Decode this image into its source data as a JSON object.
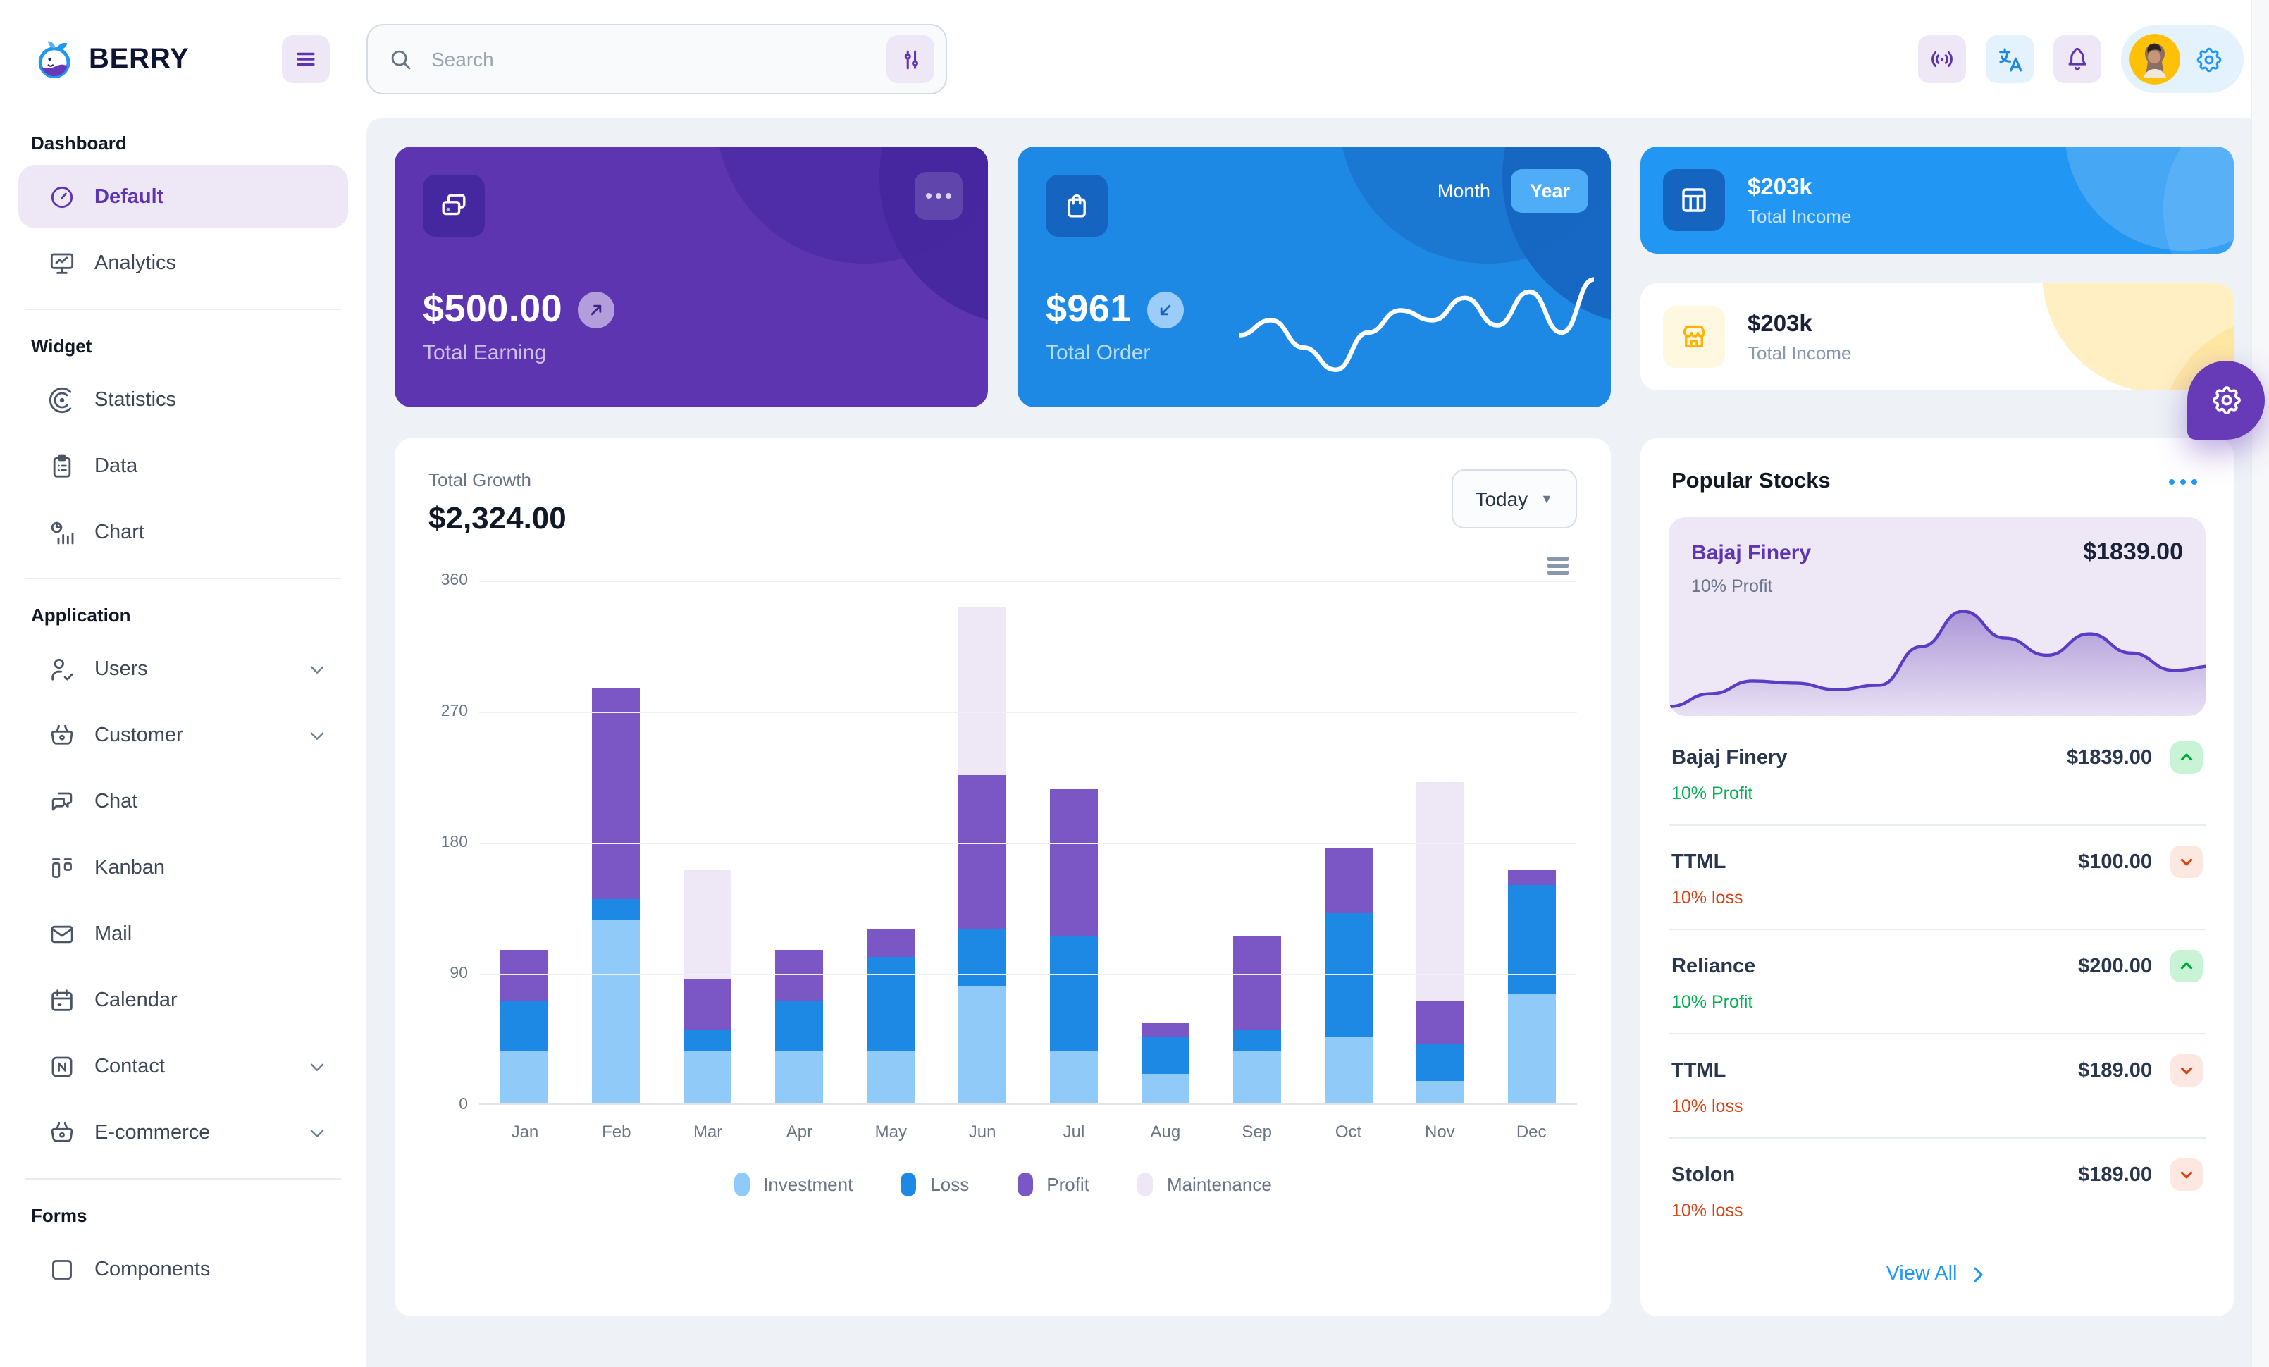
{
  "brand": {
    "name": "BERRY"
  },
  "header": {
    "search": {
      "placeholder": "Search"
    }
  },
  "sidebar": {
    "sections": [
      {
        "title": "Dashboard",
        "items": [
          {
            "label": "Default",
            "icon": "gauge",
            "active": true
          },
          {
            "label": "Analytics",
            "icon": "device-analytics"
          }
        ]
      },
      {
        "title": "Widget",
        "items": [
          {
            "label": "Statistics",
            "icon": "chart-arcs"
          },
          {
            "label": "Data",
            "icon": "clipboard-list"
          },
          {
            "label": "Chart",
            "icon": "chart-infographic"
          }
        ]
      },
      {
        "title": "Application",
        "items": [
          {
            "label": "Users",
            "icon": "user-check",
            "expandable": true
          },
          {
            "label": "Customer",
            "icon": "basket",
            "expandable": true
          },
          {
            "label": "Chat",
            "icon": "message"
          },
          {
            "label": "Kanban",
            "icon": "layout-kanban"
          },
          {
            "label": "Mail",
            "icon": "mail"
          },
          {
            "label": "Calendar",
            "icon": "calendar"
          },
          {
            "label": "Contact",
            "icon": "nfc",
            "expandable": true
          },
          {
            "label": "E-commerce",
            "icon": "basket",
            "expandable": true
          }
        ]
      },
      {
        "title": "Forms",
        "items": [
          {
            "label": "Components",
            "icon": "box"
          }
        ]
      }
    ]
  },
  "cards": {
    "earning": {
      "amount": "$500.00",
      "label": "Total Earning"
    },
    "order": {
      "amount": "$961",
      "label": "Total Order",
      "toggle": {
        "options": [
          "Month",
          "Year"
        ],
        "active": "Year"
      }
    },
    "income_dark": {
      "amount": "$203k",
      "label": "Total Income"
    },
    "income_light": {
      "amount": "$203k",
      "label": "Total Income"
    }
  },
  "growth": {
    "label": "Total Growth",
    "amount": "$2,324.00",
    "period": "Today"
  },
  "chart_data": [
    {
      "type": "bar",
      "stacked": true,
      "title": "Total Growth",
      "categories": [
        "Jan",
        "Feb",
        "Mar",
        "Apr",
        "May",
        "Jun",
        "Jul",
        "Aug",
        "Sep",
        "Oct",
        "Nov",
        "Dec"
      ],
      "series": [
        {
          "name": "Investment",
          "color": "#90caf9",
          "values": [
            35,
            125,
            35,
            35,
            35,
            80,
            35,
            20,
            35,
            45,
            15,
            75
          ]
        },
        {
          "name": "Loss",
          "color": "#1e88e5",
          "values": [
            35,
            15,
            15,
            35,
            65,
            40,
            80,
            25,
            15,
            85,
            25,
            75
          ]
        },
        {
          "name": "Profit",
          "color": "#7a57c5",
          "values": [
            35,
            145,
            35,
            35,
            20,
            105,
            100,
            10,
            65,
            45,
            30,
            10
          ]
        },
        {
          "name": "Maintenance",
          "color": "#ede7f6",
          "values": [
            0,
            0,
            75,
            0,
            0,
            115,
            0,
            0,
            0,
            0,
            150,
            0
          ]
        }
      ],
      "xlabel": "",
      "ylabel": "",
      "ylim": [
        0,
        360
      ],
      "yticks": [
        0,
        90,
        180,
        270,
        360
      ],
      "grid": true,
      "legend_position": "bottom"
    },
    {
      "type": "line",
      "name": "total-order-sparkline",
      "values": [
        40,
        52,
        30,
        12,
        42,
        60,
        52,
        70,
        48,
        75,
        42,
        85
      ]
    },
    {
      "type": "area",
      "name": "bajaj-finery-trend",
      "values": [
        6,
        18,
        30,
        28,
        22,
        26,
        62,
        95,
        70,
        54,
        74,
        56,
        40,
        44
      ]
    }
  ],
  "stocks": {
    "title": "Popular Stocks",
    "featured": {
      "name": "Bajaj Finery",
      "price": "$1839.00",
      "change": "10% Profit"
    },
    "items": [
      {
        "name": "Bajaj Finery",
        "price": "$1839.00",
        "change": "10% Profit",
        "direction": "up"
      },
      {
        "name": "TTML",
        "price": "$100.00",
        "change": "10% loss",
        "direction": "down"
      },
      {
        "name": "Reliance",
        "price": "$200.00",
        "change": "10% Profit",
        "direction": "up"
      },
      {
        "name": "TTML",
        "price": "$189.00",
        "change": "10% loss",
        "direction": "down"
      },
      {
        "name": "Stolon",
        "price": "$189.00",
        "change": "10% loss",
        "direction": "down"
      }
    ],
    "view_all": "View All"
  },
  "colors": {
    "page_bg": "#eef2f6",
    "purple_main": "#5e35b1",
    "purple_dark": "#4527a0",
    "purple_light": "#ede7f6",
    "blue_main": "#1e88e5",
    "blue_bright": "#2196f3",
    "blue_dark": "#1565c0",
    "blue_light": "#90caf9",
    "amber": "#ffc107",
    "success": "#00b14f",
    "error": "#d84315"
  }
}
